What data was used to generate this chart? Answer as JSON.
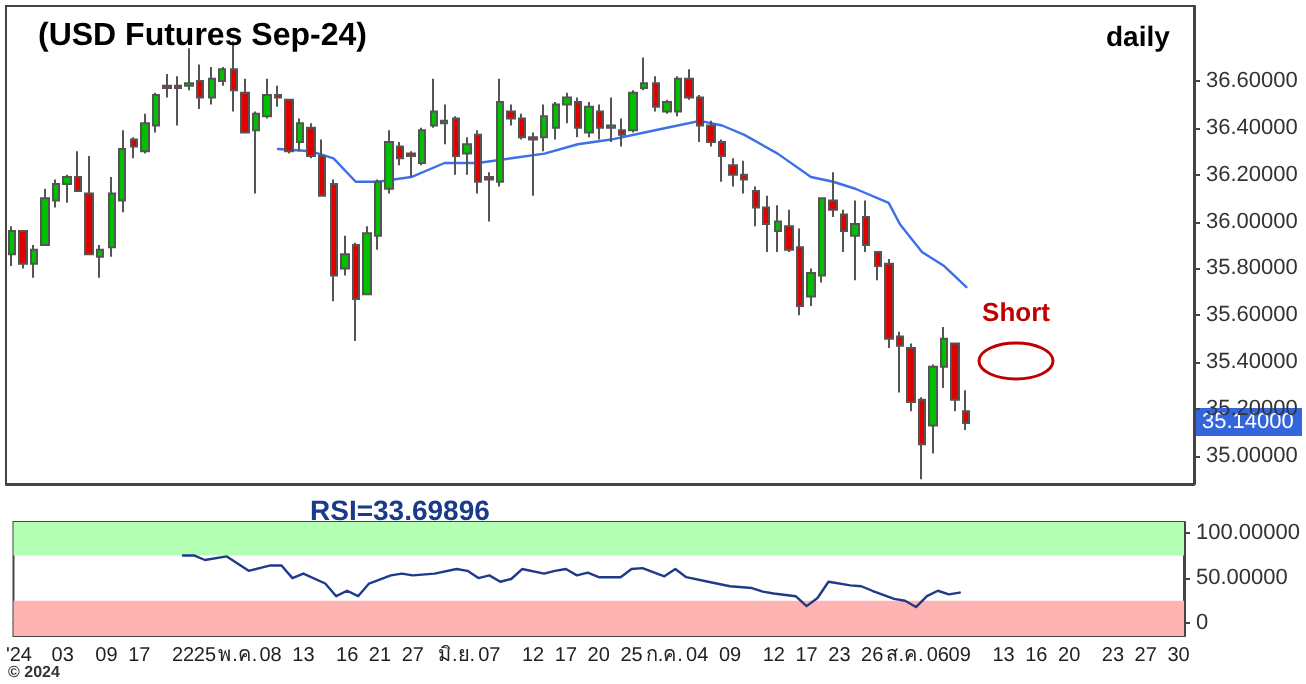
{
  "chart_data": [
    {
      "type": "candlestick",
      "title": "(USD Futures Sep-24)",
      "subtitle": "daily",
      "tick_labels": "y",
      "categories": [
        null,
        null,
        null,
        null,
        null,
        null,
        null,
        null,
        null,
        null,
        null,
        null,
        null,
        null,
        null,
        null,
        null,
        null,
        null,
        null,
        null,
        null,
        null,
        null,
        null,
        null,
        null,
        null,
        null,
        null,
        null,
        null,
        null,
        null,
        null,
        null,
        null,
        null,
        null,
        null,
        null,
        null,
        null,
        null,
        null,
        null,
        null,
        null,
        null,
        null,
        null,
        null,
        null,
        null,
        null,
        null,
        null,
        null,
        null,
        null,
        null,
        null,
        null,
        null,
        null,
        null,
        null,
        null,
        null,
        null,
        null,
        null,
        null,
        null,
        null,
        null,
        null,
        null,
        null,
        null,
        null,
        null,
        null,
        null,
        null,
        null,
        null,
        null,
        null,
        null,
        null,
        null,
        null,
        null,
        null,
        null,
        null,
        null,
        null,
        null,
        null,
        null,
        null,
        null,
        null,
        null,
        null
      ],
      "ohlc": [
        [
          35.86,
          35.98,
          35.81,
          35.96
        ],
        [
          35.96,
          35.96,
          35.8,
          35.82
        ],
        [
          35.82,
          35.9,
          35.76,
          35.88
        ],
        [
          35.9,
          36.14,
          35.9,
          36.1
        ],
        [
          36.09,
          36.18,
          36.06,
          36.16
        ],
        [
          36.16,
          36.2,
          36.08,
          36.19
        ],
        [
          36.19,
          36.3,
          36.13,
          36.13
        ],
        [
          36.12,
          36.28,
          35.86,
          35.86
        ],
        [
          35.85,
          35.9,
          35.76,
          35.88
        ],
        [
          35.89,
          36.19,
          35.85,
          36.12
        ],
        [
          36.09,
          36.39,
          36.04,
          36.31
        ],
        [
          36.35,
          36.36,
          36.27,
          36.32
        ],
        [
          36.3,
          36.46,
          36.29,
          36.42
        ],
        [
          36.41,
          36.55,
          36.38,
          36.54
        ],
        [
          36.58,
          36.63,
          36.53,
          36.57
        ],
        [
          36.58,
          36.62,
          36.41,
          36.57
        ],
        [
          36.58,
          36.74,
          36.56,
          36.59
        ],
        [
          36.6,
          36.67,
          36.48,
          36.53
        ],
        [
          36.53,
          36.66,
          36.5,
          36.61
        ],
        [
          36.6,
          36.66,
          36.58,
          36.65
        ],
        [
          36.65,
          36.77,
          36.47,
          36.56
        ],
        [
          36.55,
          36.61,
          36.38,
          36.38
        ],
        [
          36.39,
          36.47,
          36.12,
          36.46
        ],
        [
          36.45,
          36.61,
          36.44,
          36.54
        ],
        [
          36.54,
          36.58,
          36.49,
          36.53
        ],
        [
          36.52,
          36.52,
          36.29,
          36.3
        ],
        [
          36.34,
          36.44,
          36.3,
          36.42
        ],
        [
          36.4,
          36.42,
          36.27,
          36.28
        ],
        [
          36.28,
          36.35,
          36.11,
          36.11
        ],
        [
          36.16,
          36.18,
          35.66,
          35.77
        ],
        [
          35.8,
          35.94,
          35.77,
          35.86
        ],
        [
          35.9,
          35.91,
          35.49,
          35.67
        ],
        [
          35.69,
          35.98,
          35.69,
          35.95
        ],
        [
          35.94,
          36.18,
          35.88,
          36.17
        ],
        [
          36.14,
          36.39,
          36.12,
          36.34
        ],
        [
          36.32,
          36.34,
          36.24,
          36.27
        ],
        [
          36.29,
          36.3,
          36.19,
          36.28
        ],
        [
          36.25,
          36.4,
          36.24,
          36.39
        ],
        [
          36.41,
          36.61,
          36.4,
          36.47
        ],
        [
          36.42,
          36.5,
          36.33,
          36.43
        ],
        [
          36.44,
          36.45,
          36.2,
          36.28
        ],
        [
          36.29,
          36.36,
          36.2,
          36.33
        ],
        [
          36.37,
          36.39,
          36.12,
          36.17
        ],
        [
          36.19,
          36.21,
          36.0,
          36.18
        ],
        [
          36.17,
          36.61,
          36.15,
          36.51
        ],
        [
          36.47,
          36.5,
          36.41,
          36.44
        ],
        [
          36.44,
          36.46,
          36.35,
          36.36
        ],
        [
          36.36,
          36.38,
          36.11,
          36.35
        ],
        [
          36.36,
          36.5,
          36.3,
          36.45
        ],
        [
          36.4,
          36.51,
          36.35,
          36.5
        ],
        [
          36.5,
          36.55,
          36.42,
          36.53
        ],
        [
          36.51,
          36.53,
          36.36,
          36.4
        ],
        [
          36.38,
          36.51,
          36.36,
          36.49
        ],
        [
          36.47,
          36.5,
          36.35,
          36.4
        ],
        [
          36.4,
          36.53,
          36.34,
          36.41
        ],
        [
          36.39,
          36.44,
          36.32,
          36.37
        ],
        [
          36.39,
          36.56,
          36.38,
          36.55
        ],
        [
          36.57,
          36.7,
          36.56,
          36.59
        ],
        [
          36.59,
          36.62,
          36.47,
          36.49
        ],
        [
          36.47,
          36.52,
          36.46,
          36.51
        ],
        [
          36.47,
          36.62,
          36.45,
          36.61
        ],
        [
          36.61,
          36.65,
          36.52,
          36.53
        ],
        [
          36.53,
          36.54,
          36.34,
          36.41
        ],
        [
          36.41,
          36.43,
          36.32,
          36.34
        ],
        [
          36.34,
          36.35,
          36.17,
          36.28
        ],
        [
          36.24,
          36.27,
          36.15,
          36.2
        ],
        [
          36.2,
          36.26,
          36.12,
          36.18
        ],
        [
          36.13,
          36.15,
          35.98,
          36.06
        ],
        [
          36.06,
          36.11,
          35.87,
          35.99
        ],
        [
          35.96,
          36.07,
          35.87,
          36.0
        ],
        [
          35.98,
          36.05,
          35.87,
          35.88
        ],
        [
          35.89,
          35.97,
          35.6,
          35.64
        ],
        [
          35.68,
          35.8,
          35.64,
          35.78
        ],
        [
          35.77,
          36.1,
          35.74,
          36.1
        ],
        [
          36.09,
          36.21,
          36.02,
          36.05
        ],
        [
          36.03,
          36.05,
          35.87,
          35.96
        ],
        [
          35.94,
          36.09,
          35.75,
          35.99
        ],
        [
          36.02,
          36.09,
          35.87,
          35.9
        ],
        [
          35.87,
          35.87,
          35.75,
          35.81
        ],
        [
          35.82,
          35.84,
          35.46,
          35.5
        ],
        [
          35.51,
          35.53,
          35.27,
          35.47
        ],
        [
          35.46,
          35.48,
          35.19,
          35.23
        ],
        [
          35.24,
          35.25,
          34.9,
          35.05
        ],
        [
          35.13,
          35.39,
          35.01,
          35.38
        ],
        [
          35.38,
          35.55,
          35.29,
          35.5
        ],
        [
          35.48,
          35.48,
          35.19,
          35.24
        ],
        [
          35.19,
          35.28,
          35.11,
          35.14
        ],
        null,
        null,
        null,
        null,
        null,
        null,
        null,
        null,
        null,
        null,
        null,
        null,
        null,
        null,
        null,
        null,
        null,
        null,
        null,
        null
      ],
      "colors": [
        "#00c000",
        "#e00000",
        "#00c000",
        "#00c000",
        "#00c000",
        "#00c000",
        "#e00000",
        "#e00000",
        "#00c000",
        "#00c000",
        "#00c000",
        "#e00000",
        "#00c000",
        "#00c000",
        "#e00000",
        "#e00000",
        "#00c000",
        "#e00000",
        "#00c000",
        "#00c000",
        "#e00000",
        "#e00000",
        "#00c000",
        "#00c000",
        "#e00000",
        "#e00000",
        "#00c000",
        "#e00000",
        "#e00000",
        "#e00000",
        "#00c000",
        "#e00000",
        "#00c000",
        "#00c000",
        "#00c000",
        "#e00000",
        "#e00000",
        "#00c000",
        "#00c000",
        "#00c000",
        "#e00000",
        "#00c000",
        "#e00000",
        "#e00000",
        "#00c000",
        "#e00000",
        "#e00000",
        "#e00000",
        "#00c000",
        "#00c000",
        "#00c000",
        "#e00000",
        "#00c000",
        "#e00000",
        "#00c000",
        "#e00000",
        "#00c000",
        "#00c000",
        "#e00000",
        "#00c000",
        "#00c000",
        "#e00000",
        "#e00000",
        "#e00000",
        "#e00000",
        "#e00000",
        "#e00000",
        "#e00000",
        "#e00000",
        "#00c000",
        "#e00000",
        "#e00000",
        "#00c000",
        "#00c000",
        "#e00000",
        "#e00000",
        "#00c000",
        "#e00000",
        "#e00000",
        "#e00000",
        "#e00000",
        "#e00000",
        "#e00000",
        "#00c000",
        "#00c000",
        "#e00000",
        "#e00000",
        null,
        null,
        null,
        null,
        null,
        null,
        null,
        null,
        null,
        null,
        null,
        null,
        null,
        null,
        null,
        null,
        null,
        null,
        null,
        null
      ],
      "series": [
        {
          "type": "line",
          "color": "#3d6fe8",
          "values": [
            null,
            null,
            null,
            null,
            null,
            null,
            null,
            null,
            null,
            null,
            null,
            null,
            null,
            null,
            null,
            null,
            null,
            null,
            null,
            null,
            null,
            null,
            null,
            null,
            36.31,
            null,
            null,
            36.3,
            null,
            36.27,
            null,
            36.17,
            null,
            36.17,
            null,
            null,
            36.19,
            null,
            null,
            36.25,
            null,
            null,
            36.25,
            null,
            null,
            36.27,
            null,
            null,
            36.29,
            null,
            null,
            36.33,
            null,
            null,
            36.35,
            null,
            null,
            36.38,
            null,
            null,
            36.41,
            null,
            36.43,
            null,
            36.41,
            null,
            36.37,
            null,
            null,
            36.29,
            null,
            null,
            36.19,
            null,
            36.17,
            null,
            36.14,
            null,
            null,
            36.08,
            35.99,
            null,
            35.87,
            null,
            35.81,
            null,
            35.72,
            null,
            null,
            null,
            null,
            null,
            null,
            null,
            null,
            null,
            null,
            null,
            null,
            null,
            null,
            null,
            null,
            null,
            null,
            null,
            null
          ]
        }
      ],
      "ylim": [
        34.88,
        36.92
      ],
      "yticks": [
        {
          "value": 35.0,
          "label": "35.00000"
        },
        {
          "value": 35.2,
          "label": "35.20000"
        },
        {
          "value": 35.4,
          "label": "35.40000"
        },
        {
          "value": 35.6,
          "label": "35.60000"
        },
        {
          "value": 35.8,
          "label": "35.80000"
        },
        {
          "value": 36.0,
          "label": "36.00000"
        },
        {
          "value": 36.2,
          "label": "36.20000"
        },
        {
          "value": 36.4,
          "label": "36.40000"
        },
        {
          "value": 36.6,
          "label": "36.60000"
        }
      ],
      "annotations": [
        "35.14000",
        "Short"
      ]
    },
    {
      "type": "line",
      "title": "RSI=33.69896",
      "categories": [
        "'24",
        null,
        null,
        null,
        "03",
        null,
        null,
        null,
        "09",
        null,
        null,
        "17",
        null,
        null,
        null,
        "22",
        null,
        "25",
        null,
        null,
        "พ.ค.",
        null,
        null,
        "08",
        null,
        null,
        "13",
        null,
        null,
        null,
        "16",
        null,
        null,
        "21",
        null,
        null,
        "27",
        null,
        null,
        null,
        "มิ.ย.",
        null,
        null,
        "07",
        null,
        null,
        null,
        "12",
        null,
        null,
        "17",
        null,
        null,
        "20",
        null,
        null,
        "25",
        null,
        null,
        "ก.ค.",
        null,
        null,
        "04",
        null,
        null,
        "09",
        null,
        null,
        null,
        "12",
        null,
        null,
        "17",
        null,
        null,
        "23",
        null,
        null,
        "26",
        null,
        null,
        "ส.ค.",
        null,
        null,
        "06",
        null,
        "09",
        null,
        null,
        null,
        "13",
        null,
        null,
        "16",
        null,
        null,
        "20",
        null,
        null,
        null,
        "23",
        null,
        null,
        "27",
        null,
        null,
        "30"
      ],
      "series": [
        {
          "color": "#1f3a8a",
          "values": [
            null,
            null,
            null,
            null,
            null,
            null,
            null,
            null,
            null,
            null,
            null,
            null,
            null,
            null,
            null,
            75,
            75,
            70,
            null,
            74,
            null,
            58,
            null,
            64,
            64,
            50,
            55,
            null,
            44,
            30,
            36,
            30,
            44,
            null,
            53,
            55,
            53,
            null,
            55,
            null,
            60,
            58,
            50,
            53,
            46,
            49,
            60,
            null,
            55,
            58,
            60,
            53,
            56,
            51,
            null,
            51,
            60,
            61,
            null,
            52,
            60,
            51,
            null,
            46,
            null,
            41,
            null,
            39,
            35,
            33,
            null,
            30,
            19,
            28,
            46,
            null,
            42,
            41,
            36,
            null,
            27,
            25,
            18,
            30,
            36,
            32,
            34,
            null,
            null,
            null,
            null,
            null,
            null,
            null,
            null,
            null,
            null,
            null,
            null,
            null,
            null,
            null,
            null,
            null,
            null,
            null,
            null
          ]
        }
      ],
      "ylim": [
        -14,
        112
      ],
      "yticks": [
        {
          "value": 0,
          "label": "0"
        },
        {
          "value": 50,
          "label": "50.00000"
        },
        {
          "value": 100,
          "label": "100.00000"
        }
      ],
      "bands": [
        {
          "axis": "y",
          "from": 75,
          "to": 112,
          "color": "#b3ffb3"
        },
        {
          "axis": "y",
          "from": -14,
          "to": 25,
          "color": "#ffb3b3"
        }
      ],
      "annotations": [
        "© 2024"
      ]
    }
  ]
}
